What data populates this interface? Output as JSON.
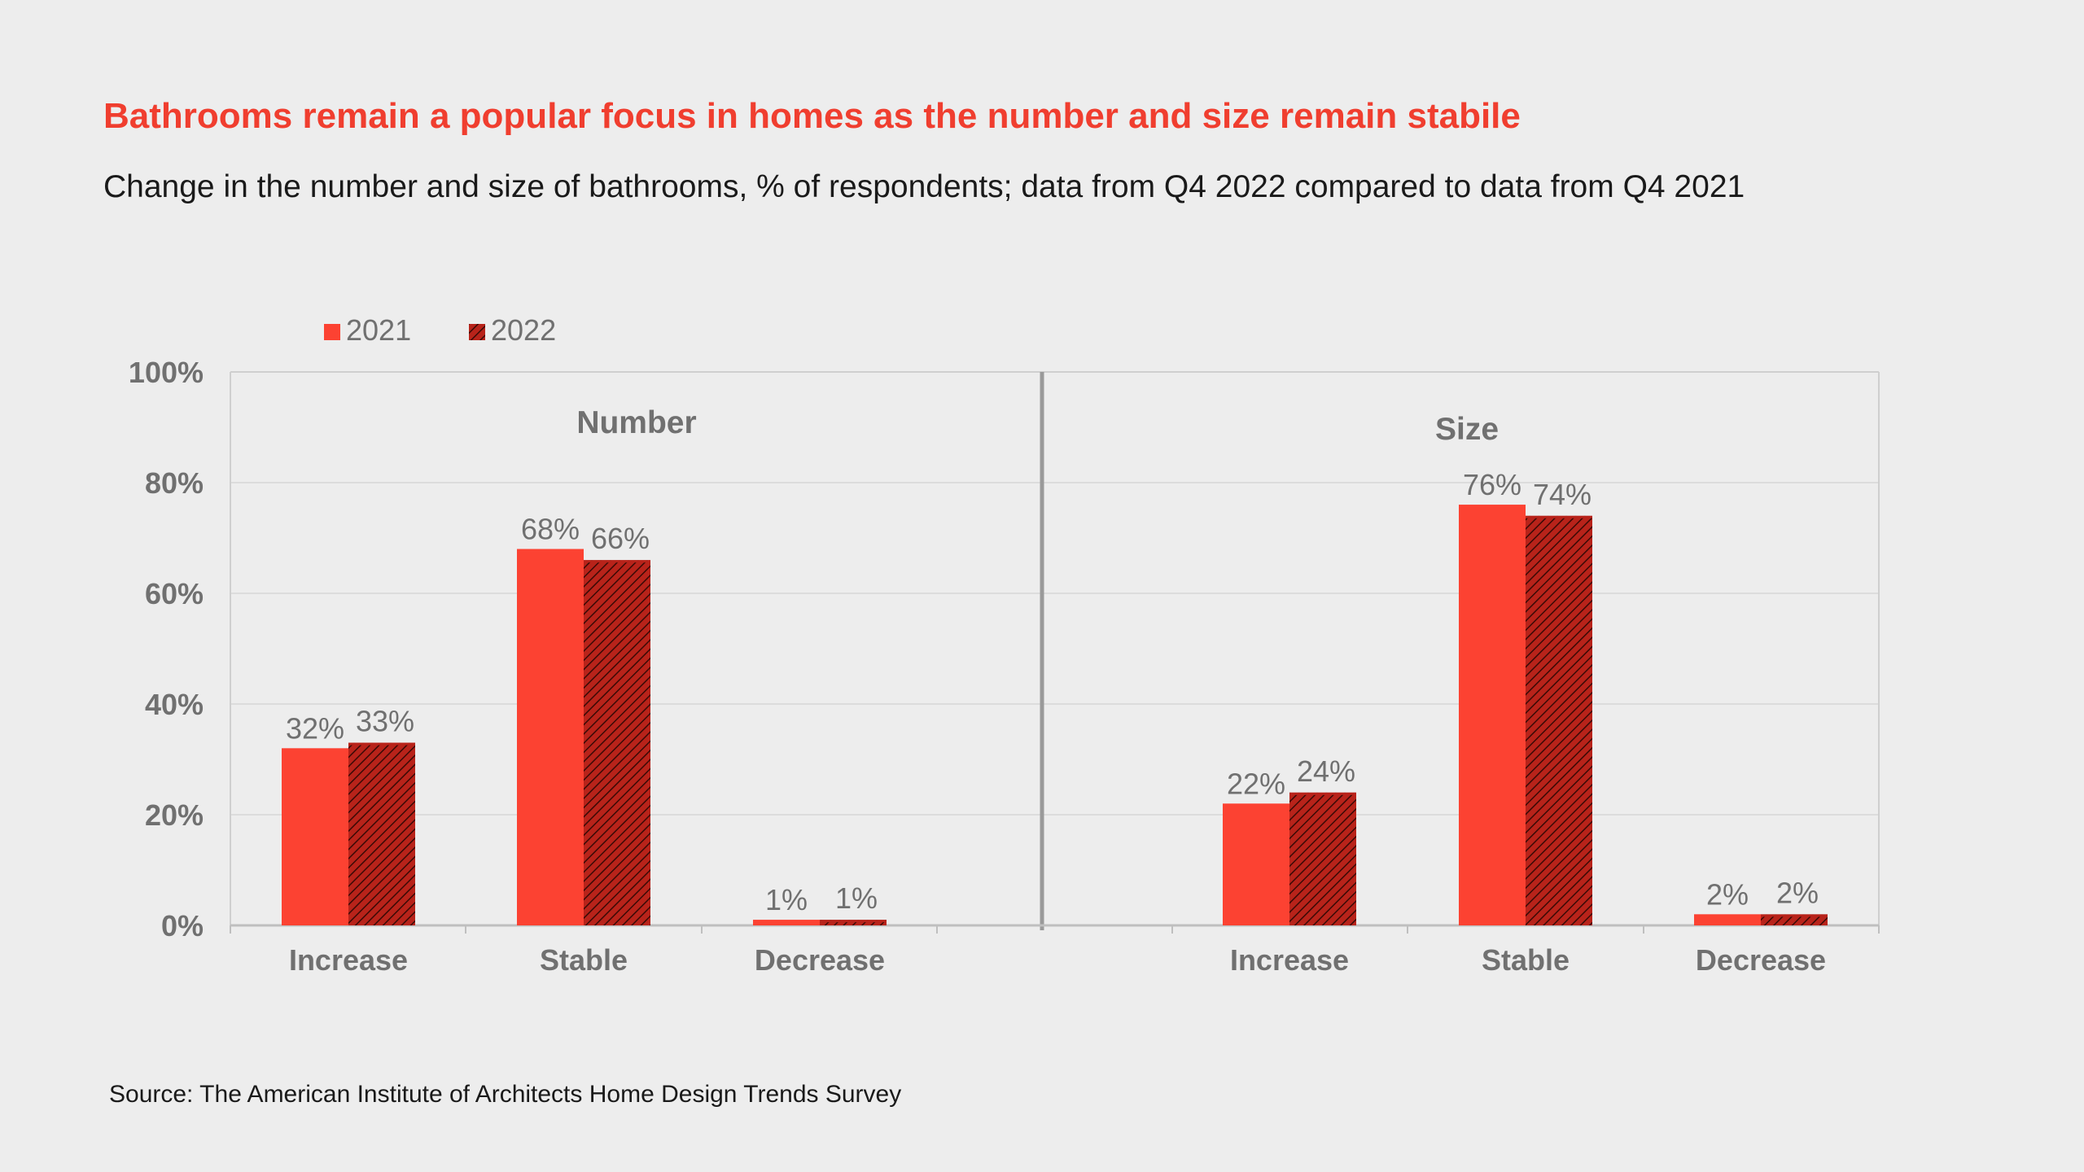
{
  "title": "Bathrooms remain a popular focus in homes as the number and size remain stabile",
  "subtitle": "Change in the number and size of bathrooms, % of respondents; data from Q4 2022 compared to data from Q4 2021",
  "source": "Source: The American Institute of Architects Home Design Trends Survey",
  "colors": {
    "series_2021": "#fc4232",
    "series_2022": "#b8231a",
    "hatch": "#3a0a06",
    "title": "#f03e2f"
  },
  "chart_data": {
    "type": "bar",
    "ylim": [
      0,
      100
    ],
    "y_ticks": [
      "0%",
      "20%",
      "40%",
      "60%",
      "80%",
      "100%"
    ],
    "y_tick_values": [
      0,
      20,
      40,
      60,
      80,
      100
    ],
    "grid": true,
    "legend": {
      "placement": "top-left",
      "entries": [
        "2021",
        "2022"
      ]
    },
    "series": [
      {
        "name": "2021"
      },
      {
        "name": "2022"
      }
    ],
    "panels": [
      {
        "title": "Number",
        "categories": [
          "Increase",
          "Stable",
          "Decrease"
        ],
        "values_2021": [
          32,
          68,
          1
        ],
        "values_2022": [
          33,
          66,
          1
        ],
        "labels_2021": [
          "32%",
          "68%",
          "1%"
        ],
        "labels_2022": [
          "33%",
          "66%",
          "1%"
        ]
      },
      {
        "title": "Size",
        "categories": [
          "Increase",
          "Stable",
          "Decrease"
        ],
        "values_2021": [
          22,
          76,
          2
        ],
        "values_2022": [
          24,
          74,
          2
        ],
        "labels_2021": [
          "22%",
          "76%",
          "2%"
        ],
        "labels_2022": [
          "24%",
          "74%",
          "2%"
        ]
      }
    ]
  }
}
